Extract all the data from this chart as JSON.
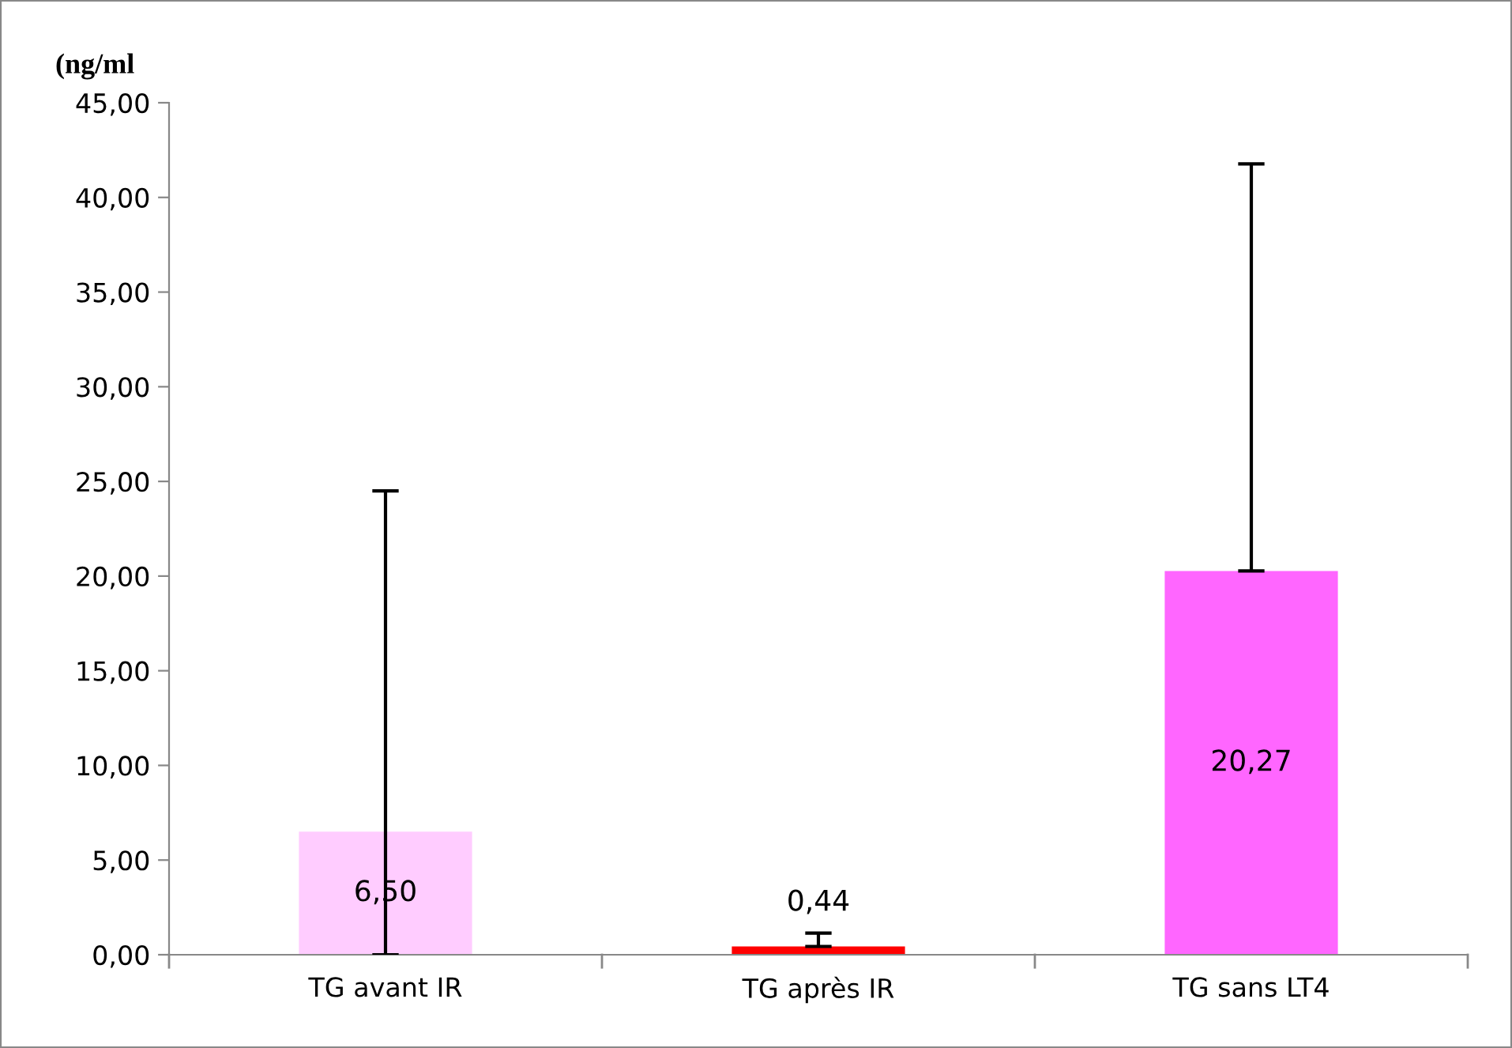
{
  "chart_data": {
    "type": "bar",
    "ylabel": "(ng/ml",
    "categories": [
      "TG avant IR",
      "TG après IR",
      "TG sans LT4"
    ],
    "values": [
      6.5,
      0.44,
      20.27
    ],
    "colors": [
      "#ffccff",
      "#ff0000",
      "#ff66ff"
    ],
    "value_labels": [
      "6,50",
      "0,44",
      "20,27"
    ],
    "errors": [
      [
        0,
        24.5
      ],
      [
        0.44,
        1.14
      ],
      [
        20.27,
        41.77
      ]
    ],
    "ylim": [
      0,
      45
    ],
    "yticks": [
      {
        "value": 0,
        "label": "0,00"
      },
      {
        "value": 5,
        "label": "5,00"
      },
      {
        "value": 10,
        "label": "10,00"
      },
      {
        "value": 15,
        "label": "15,00"
      },
      {
        "value": 20,
        "label": "20,00"
      },
      {
        "value": 25,
        "label": "25,00"
      },
      {
        "value": 30,
        "label": "30,00"
      },
      {
        "value": 35,
        "label": "35,00"
      },
      {
        "value": 40,
        "label": "40,00"
      },
      {
        "value": 45,
        "label": "45,00"
      }
    ],
    "grid": false,
    "legend": false
  }
}
